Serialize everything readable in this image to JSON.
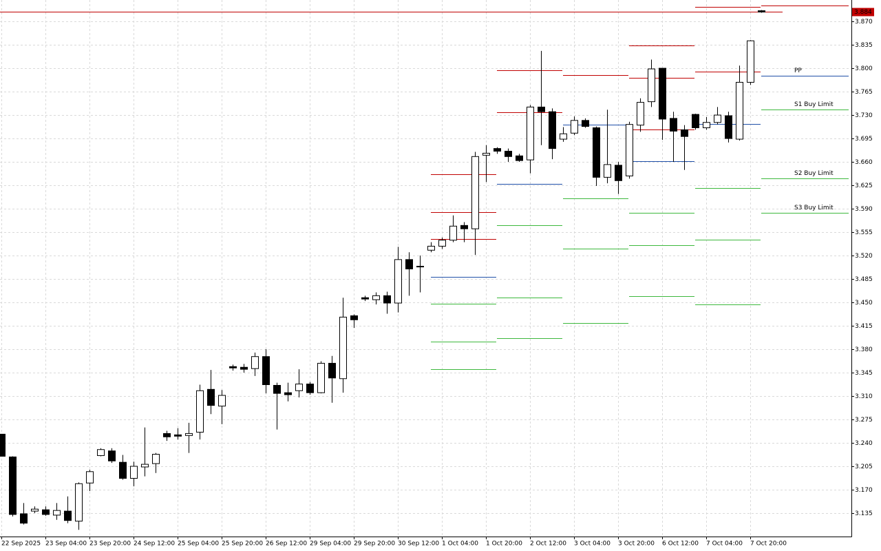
{
  "chart_data": {
    "type": "candlestick",
    "categories": [
      "22 Sep 2025",
      null,
      null,
      null,
      "23 Sep 04:00",
      null,
      null,
      null,
      "23 Sep 20:00",
      null,
      null,
      null,
      "24 Sep 12:00",
      null,
      null,
      null,
      "25 Sep 04:00",
      null,
      null,
      null,
      "25 Sep 20:00",
      null,
      null,
      null,
      "26 Sep 12:00",
      null,
      null,
      null,
      "29 Sep 04:00",
      null,
      null,
      null,
      "29 Sep 20:00",
      null,
      null,
      null,
      "30 Sep 12:00",
      null,
      null,
      null,
      "1 Oct 04:00",
      null,
      null,
      null,
      "1 Oct 20:00",
      null,
      null,
      null,
      "2 Oct 12:00",
      null,
      null,
      null,
      "3 Oct 04:00",
      null,
      null,
      null,
      "3 Oct 20:00",
      null,
      null,
      null,
      "6 Oct 12:00",
      null,
      null,
      null,
      "7 Oct 04:00",
      null,
      null,
      null,
      "7 Oct 20:00",
      null
    ],
    "open": [
      3.253,
      3.219,
      3.134,
      3.138,
      3.14,
      3.132,
      3.138,
      3.123,
      3.18,
      3.221,
      3.228,
      3.211,
      3.187,
      3.204,
      3.209,
      3.254,
      3.252,
      3.251,
      3.256,
      3.32,
      3.295,
      3.354,
      3.353,
      3.351,
      3.369,
      3.326,
      3.315,
      3.318,
      3.328,
      3.315,
      3.359,
      3.336,
      3.43,
      3.457,
      3.454,
      3.46,
      3.449,
      3.514,
      3.504,
      3.528,
      3.534,
      3.543,
      3.565,
      3.56,
      3.67,
      3.68,
      3.676,
      3.669,
      3.663,
      3.742,
      3.735,
      3.694,
      3.703,
      3.722,
      3.711,
      3.637,
      3.655,
      3.639,
      3.715,
      3.75,
      3.8,
      3.725,
      3.708,
      3.731,
      3.711,
      3.719,
      3.729,
      3.694,
      3.779,
      3.886
    ],
    "high": [
      3.253,
      3.22,
      3.15,
      3.145,
      3.145,
      3.15,
      3.16,
      3.181,
      3.2,
      3.232,
      3.232,
      3.222,
      3.212,
      3.263,
      3.225,
      3.258,
      3.262,
      3.27,
      3.327,
      3.349,
      3.319,
      3.357,
      3.358,
      3.375,
      3.38,
      3.33,
      3.33,
      3.35,
      3.331,
      3.362,
      3.37,
      3.457,
      3.432,
      3.46,
      3.465,
      3.466,
      3.533,
      3.525,
      3.52,
      3.54,
      3.547,
      3.58,
      3.57,
      3.675,
      3.685,
      3.682,
      3.68,
      3.672,
      3.745,
      3.826,
      3.74,
      3.712,
      3.728,
      3.725,
      3.713,
      3.738,
      3.66,
      3.72,
      3.755,
      3.813,
      3.8,
      3.735,
      3.715,
      3.732,
      3.727,
      3.742,
      3.735,
      3.804,
      3.842,
      3.887
    ],
    "low": [
      3.22,
      3.13,
      3.118,
      3.135,
      3.131,
      3.125,
      3.12,
      3.11,
      3.168,
      3.22,
      3.21,
      3.185,
      3.175,
      3.19,
      3.195,
      3.243,
      3.245,
      3.225,
      3.245,
      3.283,
      3.268,
      3.348,
      3.345,
      3.34,
      3.314,
      3.26,
      3.302,
      3.308,
      3.312,
      3.314,
      3.3,
      3.315,
      3.412,
      3.452,
      3.447,
      3.433,
      3.435,
      3.46,
      3.465,
      3.525,
      3.53,
      3.54,
      3.54,
      3.521,
      3.63,
      3.672,
      3.66,
      3.66,
      3.643,
      3.685,
      3.664,
      3.69,
      3.7,
      3.711,
      3.624,
      3.628,
      3.612,
      3.635,
      3.705,
      3.742,
      3.693,
      3.66,
      3.648,
      3.708,
      3.708,
      3.716,
      3.689,
      3.692,
      3.775,
      3.883
    ],
    "close": [
      3.22,
      3.133,
      3.12,
      3.141,
      3.133,
      3.139,
      3.124,
      3.179,
      3.197,
      3.23,
      3.213,
      3.187,
      3.205,
      3.208,
      3.223,
      3.249,
      3.25,
      3.254,
      3.318,
      3.296,
      3.311,
      3.352,
      3.35,
      3.369,
      3.327,
      3.314,
      3.312,
      3.328,
      3.315,
      3.359,
      3.337,
      3.428,
      3.424,
      3.455,
      3.46,
      3.449,
      3.514,
      3.5,
      3.503,
      3.534,
      3.543,
      3.564,
      3.56,
      3.668,
      3.673,
      3.676,
      3.668,
      3.662,
      3.742,
      3.735,
      3.68,
      3.702,
      3.722,
      3.713,
      3.637,
      3.656,
      3.632,
      3.716,
      3.749,
      3.799,
      3.724,
      3.706,
      3.698,
      3.711,
      3.719,
      3.73,
      3.695,
      3.779,
      3.841,
      3.884
    ],
    "up_color": "#ffffff",
    "down_color": "#000000",
    "ylim": [
      3.1,
      3.902
    ],
    "yticks": [
      {
        "value": 3.135,
        "label": "3.135"
      },
      {
        "value": 3.17,
        "label": "3.170"
      },
      {
        "value": 3.205,
        "label": "3.205"
      },
      {
        "value": 3.24,
        "label": "3.240"
      },
      {
        "value": 3.275,
        "label": "3.275"
      },
      {
        "value": 3.31,
        "label": "3.310"
      },
      {
        "value": 3.345,
        "label": "3.345"
      },
      {
        "value": 3.38,
        "label": "3.380"
      },
      {
        "value": 3.415,
        "label": "3.415"
      },
      {
        "value": 3.45,
        "label": "3.450"
      },
      {
        "value": 3.485,
        "label": "3.485"
      },
      {
        "value": 3.52,
        "label": "3.520"
      },
      {
        "value": 3.555,
        "label": "3.555"
      },
      {
        "value": 3.59,
        "label": "3.590"
      },
      {
        "value": 3.625,
        "label": "3.625"
      },
      {
        "value": 3.66,
        "label": "3.660"
      },
      {
        "value": 3.695,
        "label": "3.695"
      },
      {
        "value": 3.73,
        "label": "3.730"
      },
      {
        "value": 3.765,
        "label": "3.765"
      },
      {
        "value": 3.8,
        "label": "3.800"
      },
      {
        "value": 3.835,
        "label": "3.835"
      },
      {
        "value": 3.87,
        "label": "3.870"
      }
    ],
    "grid": true,
    "last_price": {
      "value": 3.884,
      "label": "3.884",
      "color": "#c00000"
    },
    "pivots": [
      {
        "color": "#c00000",
        "segments": [
          {
            "x": [
              39,
              45
            ],
            "value": 3.642
          },
          {
            "x": [
              39,
              45
            ],
            "value": 3.585
          },
          {
            "x": [
              39,
              45
            ],
            "value": 3.545
          },
          {
            "x": [
              45,
              51
            ],
            "value": 3.797
          },
          {
            "x": [
              45,
              51
            ],
            "value": 3.734
          },
          {
            "x": [
              51,
              57
            ],
            "value": 3.79
          },
          {
            "x": [
              57,
              63
            ],
            "value": 3.834
          },
          {
            "x": [
              57,
              63
            ],
            "value": 3.786
          },
          {
            "x": [
              57,
              63
            ],
            "value": 3.708
          },
          {
            "x": [
              63,
              69
            ],
            "value": 3.892
          },
          {
            "x": [
              63,
              69
            ],
            "value": 3.795
          },
          {
            "x": [
              69,
              77
            ],
            "value": 3.894
          }
        ]
      },
      {
        "color": "#1f4fa8",
        "segments": [
          {
            "x": [
              39,
              45
            ],
            "value": 3.488
          },
          {
            "x": [
              45,
              51
            ],
            "value": 3.627
          },
          {
            "x": [
              51,
              57
            ],
            "value": 3.716
          },
          {
            "x": [
              57,
              63
            ],
            "value": 3.661
          },
          {
            "x": [
              63,
              69
            ],
            "value": 3.717
          },
          {
            "x": [
              69,
              77
            ],
            "value": 3.789,
            "label": "PP"
          }
        ]
      },
      {
        "color": "#3cb83c",
        "segments": [
          {
            "x": [
              39,
              45
            ],
            "value": 3.448
          },
          {
            "x": [
              39,
              45
            ],
            "value": 3.391
          },
          {
            "x": [
              39,
              45
            ],
            "value": 3.35
          },
          {
            "x": [
              45,
              51
            ],
            "value": 3.565
          },
          {
            "x": [
              45,
              51
            ],
            "value": 3.457
          },
          {
            "x": [
              45,
              51
            ],
            "value": 3.396
          },
          {
            "x": [
              51,
              57
            ],
            "value": 3.605
          },
          {
            "x": [
              51,
              57
            ],
            "value": 3.53
          },
          {
            "x": [
              51,
              57
            ],
            "value": 3.419
          },
          {
            "x": [
              57,
              63
            ],
            "value": 3.584
          },
          {
            "x": [
              57,
              63
            ],
            "value": 3.535
          },
          {
            "x": [
              57,
              63
            ],
            "value": 3.459
          },
          {
            "x": [
              63,
              69
            ],
            "value": 3.621
          },
          {
            "x": [
              63,
              69
            ],
            "value": 3.544
          },
          {
            "x": [
              63,
              69
            ],
            "value": 3.447
          },
          {
            "x": [
              69,
              77
            ],
            "value": 3.738,
            "label": "S1 Buy Limit"
          },
          {
            "x": [
              69,
              77
            ],
            "value": 3.635,
            "label": "S2 Buy Limit"
          },
          {
            "x": [
              69,
              77
            ],
            "value": 3.584,
            "label": "S3 Buy Limit"
          }
        ]
      }
    ]
  }
}
